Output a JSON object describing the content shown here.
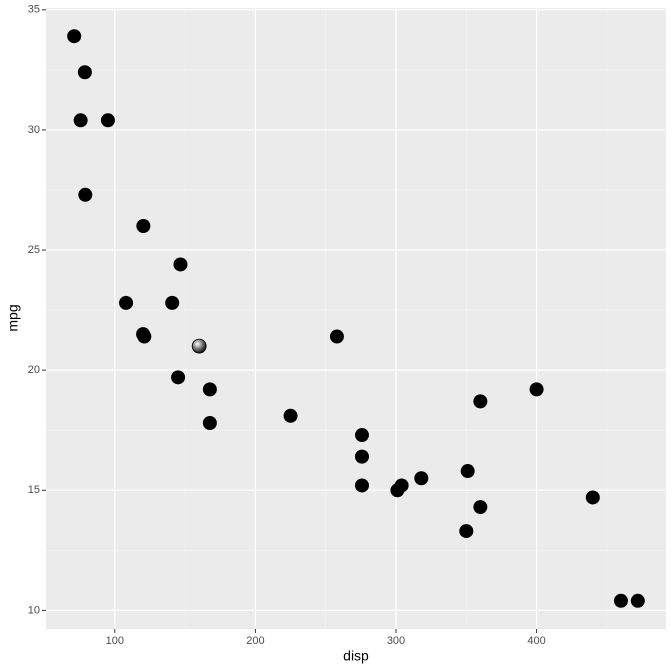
{
  "chart_data": {
    "type": "scatter",
    "x_label": "disp",
    "y_label": "mpg",
    "x": [
      160,
      160,
      108,
      258,
      360,
      225,
      360,
      146.7,
      140.8,
      167.6,
      167.6,
      275.8,
      275.8,
      275.8,
      472,
      460,
      440,
      78.7,
      75.7,
      71.1,
      120.1,
      318,
      304,
      350,
      400,
      79,
      120.3,
      95.1,
      351,
      145,
      301,
      121
    ],
    "series": [
      {
        "color": "#000000",
        "values": [
          21.0,
          21.0,
          22.8,
          21.4,
          18.7,
          18.1,
          14.3,
          24.4,
          22.8,
          19.2,
          17.8,
          16.4,
          17.3,
          15.2,
          10.4,
          10.4,
          14.7,
          32.4,
          30.4,
          33.9,
          21.5,
          15.5,
          15.2,
          13.3,
          19.2,
          27.3,
          26.0,
          30.4,
          15.8,
          19.7,
          15.0,
          21.4
        ]
      }
    ],
    "xlim": [
      51.05,
      492.05
    ],
    "ylim": [
      9.225,
      35.075
    ],
    "xticks": [
      100,
      200,
      300,
      400
    ],
    "yticks": [
      10,
      15,
      20,
      25,
      30,
      35
    ],
    "grid": true
  }
}
